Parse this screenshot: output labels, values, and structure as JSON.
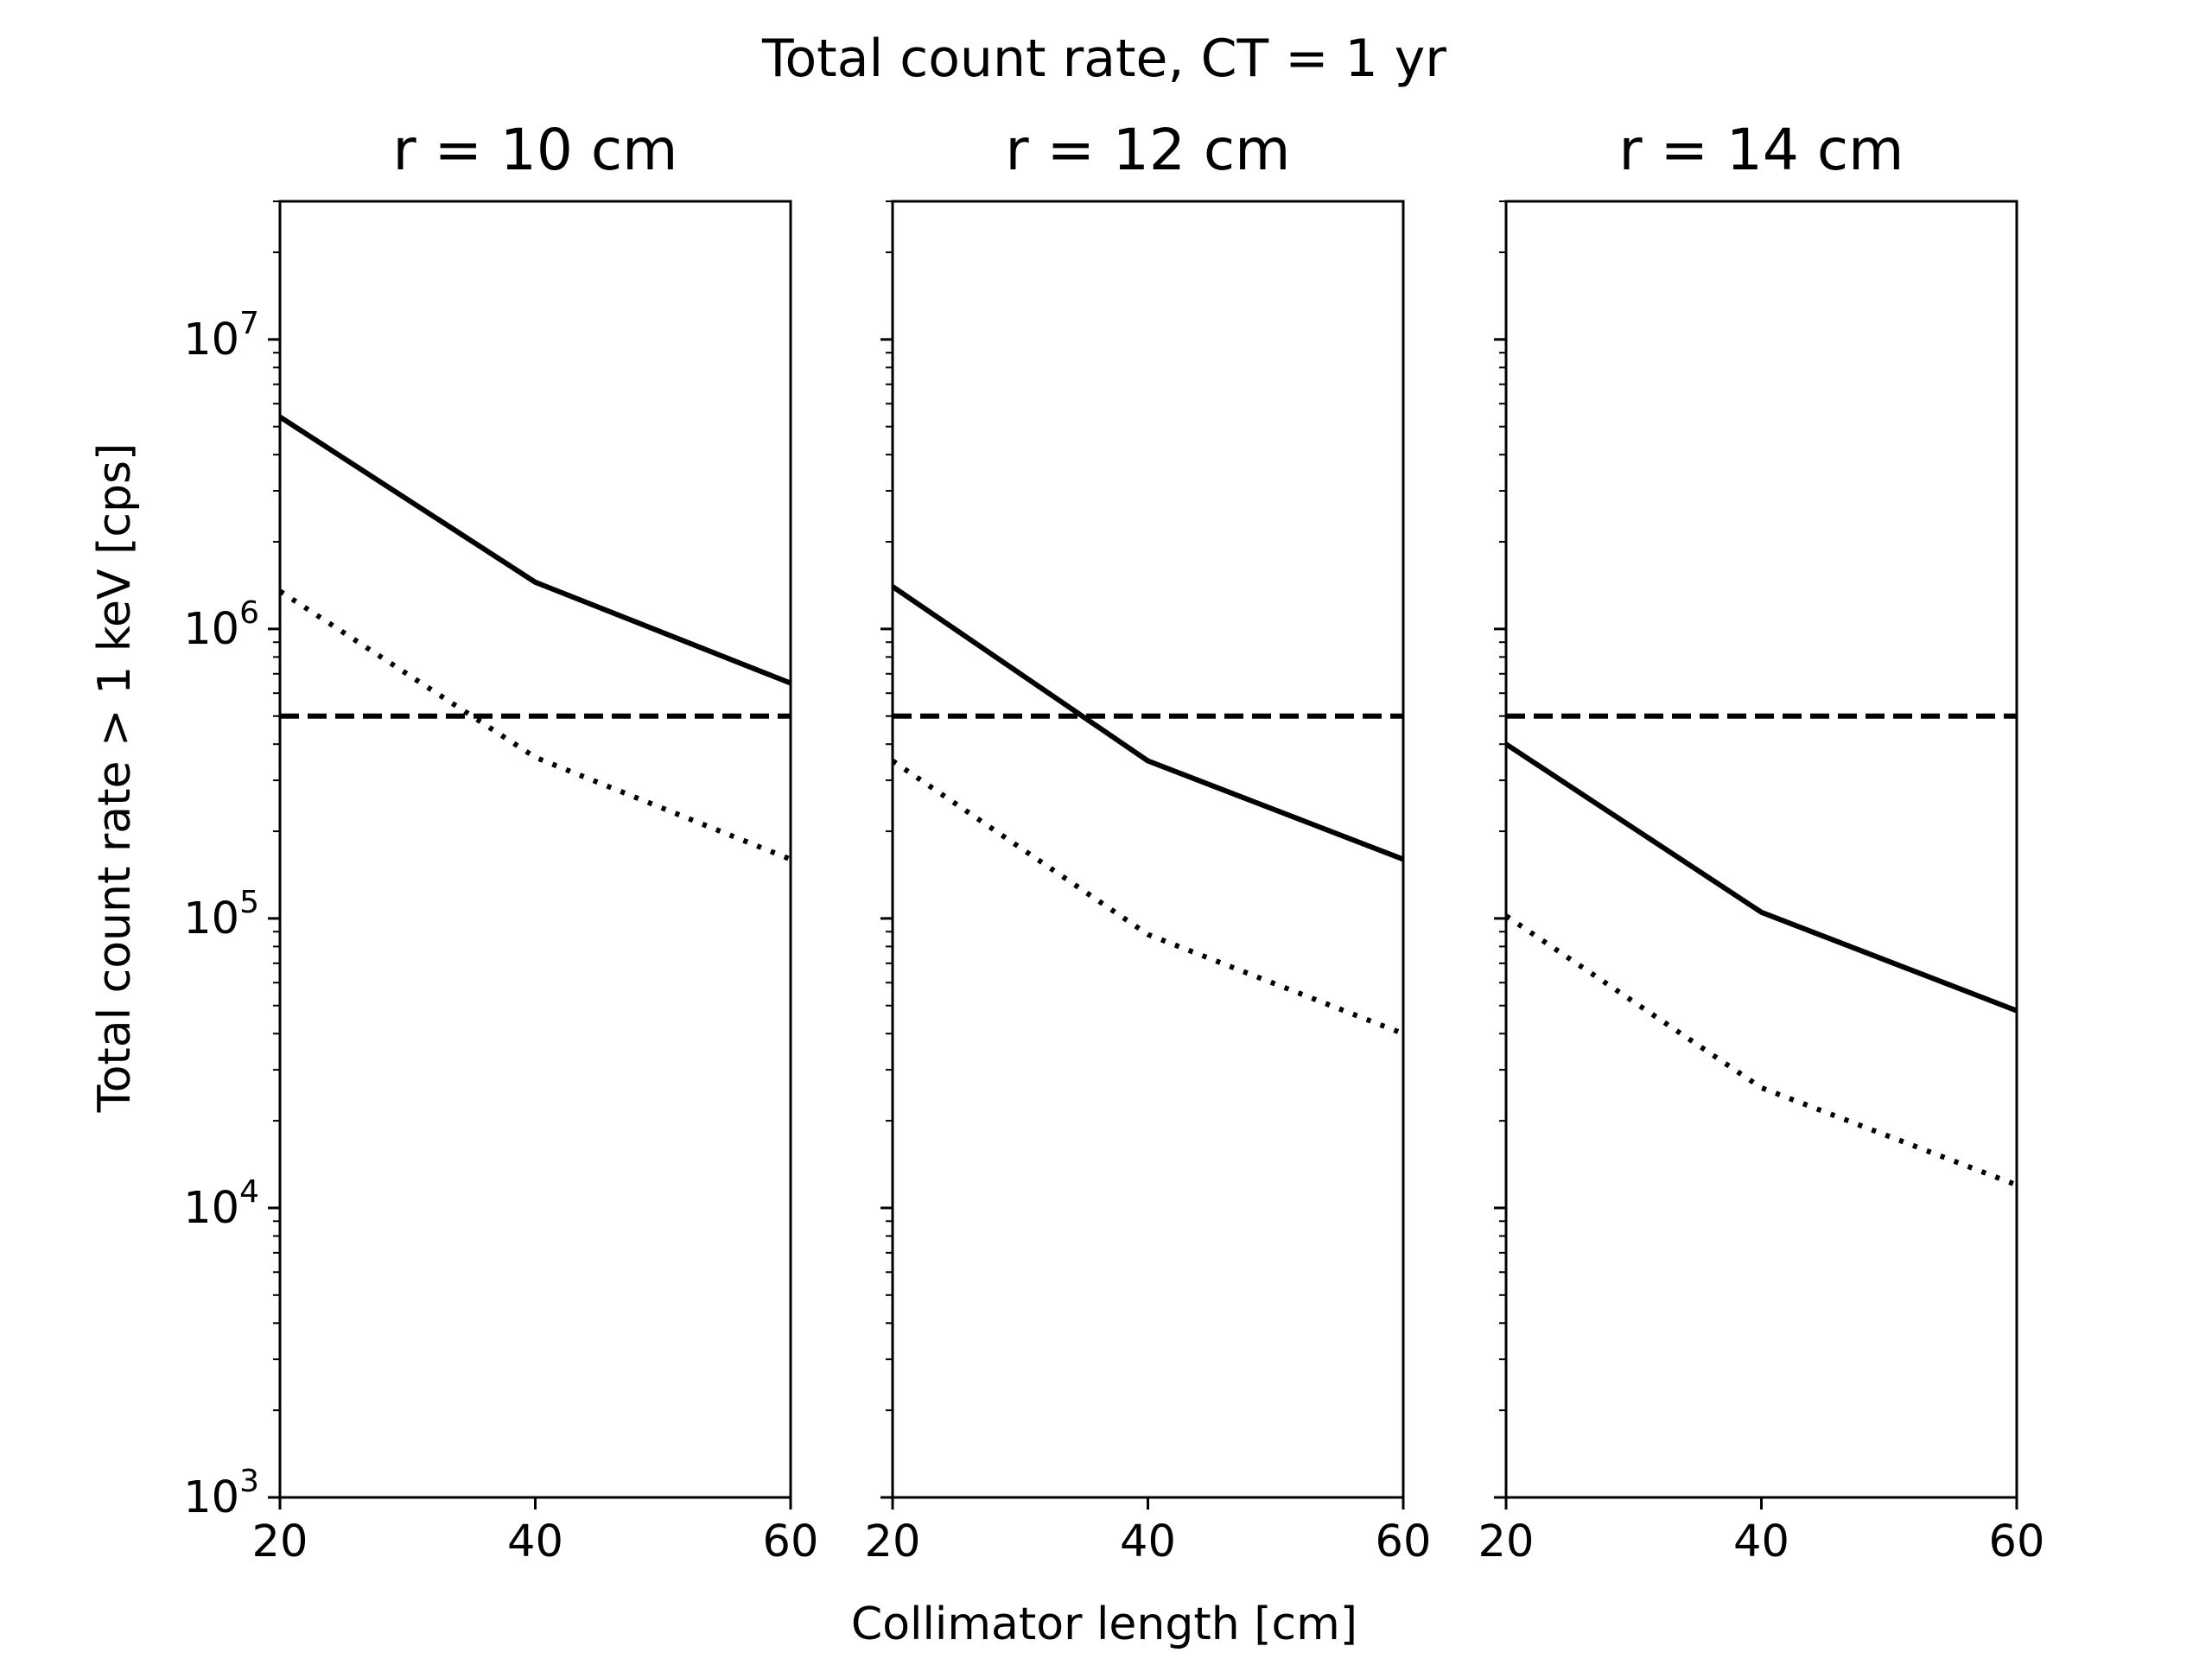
{
  "figure": {
    "title": "Total count rate, CT = 1 yr",
    "xlabel": "Collimator length [cm]",
    "ylabel": "Total count rate > 1 keV [cps]"
  },
  "chart_data": [
    {
      "type": "line",
      "title": "r = 10 cm",
      "x": [
        20,
        40,
        60
      ],
      "xlim": [
        20,
        60
      ],
      "ylim": [
        1000,
        30000000
      ],
      "yscale": "log",
      "xticks": [
        "20",
        "40",
        "60"
      ],
      "yticks": [
        {
          "base": "10",
          "exp": "3",
          "value": 1000
        },
        {
          "base": "10",
          "exp": "4",
          "value": 10000
        },
        {
          "base": "10",
          "exp": "5",
          "value": 100000
        },
        {
          "base": "10",
          "exp": "6",
          "value": 1000000
        },
        {
          "base": "10",
          "exp": "7",
          "value": 10000000
        }
      ],
      "show_yticklabels": true,
      "series": [
        {
          "style": "solid",
          "color": "#000000",
          "values": [
            5400000,
            1450000,
            650000
          ]
        },
        {
          "style": "dotted",
          "color": "#000000",
          "values": [
            1350000,
            360000,
            160000
          ]
        },
        {
          "style": "dashed",
          "color": "#000000",
          "values": [
            500000,
            500000,
            500000
          ]
        }
      ],
      "grid": false
    },
    {
      "type": "line",
      "title": "r = 12 cm",
      "x": [
        20,
        40,
        60
      ],
      "xlim": [
        20,
        60
      ],
      "ylim": [
        1000,
        30000000
      ],
      "yscale": "log",
      "xticks": [
        "20",
        "40",
        "60"
      ],
      "yticks": [
        {
          "value": 1000
        },
        {
          "value": 10000
        },
        {
          "value": 100000
        },
        {
          "value": 1000000
        },
        {
          "value": 10000000
        }
      ],
      "show_yticklabels": false,
      "series": [
        {
          "style": "solid",
          "color": "#000000",
          "values": [
            1400000,
            350000,
            160000
          ]
        },
        {
          "style": "dotted",
          "color": "#000000",
          "values": [
            350000,
            88000,
            40000
          ]
        },
        {
          "style": "dashed",
          "color": "#000000",
          "values": [
            500000,
            500000,
            500000
          ]
        }
      ],
      "grid": false
    },
    {
      "type": "line",
      "title": "r = 14 cm",
      "x": [
        20,
        40,
        60
      ],
      "xlim": [
        20,
        60
      ],
      "ylim": [
        1000,
        30000000
      ],
      "yscale": "log",
      "xticks": [
        "20",
        "40",
        "60"
      ],
      "yticks": [
        {
          "value": 1000
        },
        {
          "value": 10000
        },
        {
          "value": 100000
        },
        {
          "value": 1000000
        },
        {
          "value": 10000000
        }
      ],
      "show_yticklabels": false,
      "series": [
        {
          "style": "solid",
          "color": "#000000",
          "values": [
            400000,
            105000,
            48000
          ]
        },
        {
          "style": "dotted",
          "color": "#000000",
          "values": [
            102000,
            26000,
            12000
          ]
        },
        {
          "style": "dashed",
          "color": "#000000",
          "values": [
            500000,
            500000,
            500000
          ]
        }
      ],
      "grid": false
    }
  ]
}
